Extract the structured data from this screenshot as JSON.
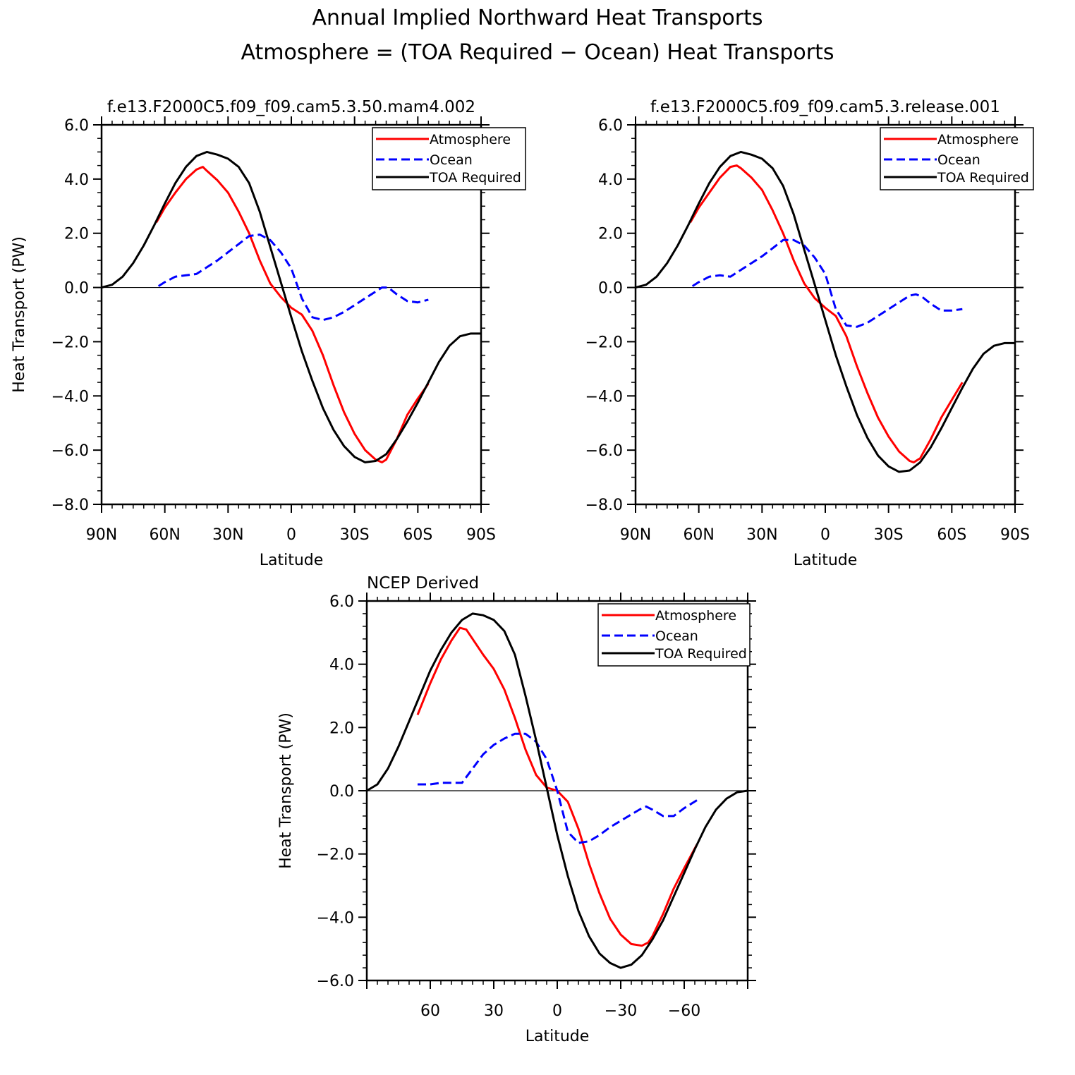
{
  "figure": {
    "title_line1": "Annual Implied Northward Heat Transports",
    "title_line2": "Atmosphere = (TOA Required − Ocean) Heat Transports"
  },
  "colors": {
    "atmosphere": "#ff0000",
    "ocean": "#0000ff",
    "toa": "#000000"
  },
  "chart_data": [
    {
      "type": "line",
      "title": "f.e13.F2000C5.f09_f09.cam5.3.50.mam4.002",
      "xlabel": "Latitude",
      "ylabel": "Heat Transport (PW)",
      "xlim": [
        90,
        -90
      ],
      "ylim": [
        -8,
        6
      ],
      "xticks": [
        90,
        60,
        30,
        0,
        -30,
        -60,
        -90
      ],
      "xtick_labels": [
        "90N",
        "60N",
        "30N",
        "0",
        "30S",
        "60S",
        "90S"
      ],
      "yticks": [
        -8,
        -6,
        -4,
        -2,
        0,
        2,
        4,
        6
      ],
      "ytick_labels": [
        "−8.0",
        "−6.0",
        "−4.0",
        "−2.0",
        "0.0",
        "2.0",
        "4.0",
        "6.0"
      ],
      "legend": [
        "Atmosphere",
        "Ocean",
        "TOA Required"
      ],
      "legend_position": "top-right",
      "series": [
        {
          "name": "Atmosphere",
          "style": "solid",
          "color_key": "atmosphere",
          "x": [
            64,
            60,
            55,
            50,
            45,
            42,
            40,
            35,
            30,
            25,
            20,
            15,
            10,
            5,
            0,
            -5,
            -10,
            -15,
            -20,
            -25,
            -30,
            -35,
            -40,
            -43,
            -45,
            -50,
            -55,
            -60,
            -65
          ],
          "y": [
            2.4,
            2.95,
            3.5,
            4.0,
            4.35,
            4.45,
            4.3,
            3.95,
            3.5,
            2.8,
            2.0,
            1.0,
            0.15,
            -0.35,
            -0.75,
            -1.0,
            -1.6,
            -2.5,
            -3.6,
            -4.6,
            -5.4,
            -6.0,
            -6.35,
            -6.45,
            -6.35,
            -5.6,
            -4.7,
            -4.1,
            -3.55
          ]
        },
        {
          "name": "Ocean",
          "style": "dashed",
          "color_key": "ocean",
          "x": [
            63,
            60,
            55,
            50,
            45,
            40,
            35,
            30,
            25,
            20,
            15,
            10,
            5,
            0,
            -5,
            -10,
            -15,
            -20,
            -25,
            -30,
            -35,
            -40,
            -43,
            -46,
            -50,
            -55,
            -60,
            -65
          ],
          "y": [
            0.05,
            0.2,
            0.4,
            0.45,
            0.5,
            0.75,
            1.0,
            1.3,
            1.6,
            1.9,
            1.95,
            1.75,
            1.3,
            0.7,
            -0.4,
            -1.1,
            -1.2,
            -1.1,
            -0.9,
            -0.65,
            -0.4,
            -0.15,
            0.0,
            0.0,
            -0.25,
            -0.5,
            -0.55,
            -0.45
          ]
        },
        {
          "name": "TOA Required",
          "style": "solid",
          "color_key": "toa",
          "x": [
            90,
            85,
            80,
            75,
            70,
            65,
            60,
            55,
            50,
            45,
            40,
            35,
            30,
            25,
            20,
            15,
            10,
            5,
            0,
            -5,
            -10,
            -15,
            -20,
            -25,
            -30,
            -35,
            -40,
            -45,
            -50,
            -55,
            -60,
            -65,
            -70,
            -75,
            -80,
            -85,
            -90
          ],
          "y": [
            0.0,
            0.1,
            0.4,
            0.9,
            1.55,
            2.3,
            3.1,
            3.85,
            4.45,
            4.85,
            5.0,
            4.9,
            4.75,
            4.45,
            3.85,
            2.8,
            1.5,
            0.2,
            -1.1,
            -2.35,
            -3.45,
            -4.45,
            -5.25,
            -5.85,
            -6.25,
            -6.45,
            -6.4,
            -6.15,
            -5.6,
            -4.95,
            -4.25,
            -3.5,
            -2.75,
            -2.15,
            -1.8,
            -1.7,
            -1.7
          ]
        }
      ]
    },
    {
      "type": "line",
      "title": "f.e13.F2000C5.f09_f09.cam5.3.release.001",
      "xlabel": "Latitude",
      "ylabel": "",
      "xlim": [
        90,
        -90
      ],
      "ylim": [
        -8,
        6
      ],
      "xticks": [
        90,
        60,
        30,
        0,
        -30,
        -60,
        -90
      ],
      "xtick_labels": [
        "90N",
        "60N",
        "30N",
        "0",
        "30S",
        "60S",
        "90S"
      ],
      "yticks": [
        -8,
        -6,
        -4,
        -2,
        0,
        2,
        4,
        6
      ],
      "ytick_labels": [
        "−8.0",
        "−6.0",
        "−4.0",
        "−2.0",
        "0.0",
        "2.0",
        "4.0",
        "6.0"
      ],
      "legend": [
        "Atmosphere",
        "Ocean",
        "TOA Required"
      ],
      "legend_position": "top-right",
      "series": [
        {
          "name": "Atmosphere",
          "style": "solid",
          "color_key": "atmosphere",
          "x": [
            64,
            60,
            55,
            50,
            45,
            42,
            40,
            35,
            30,
            25,
            20,
            15,
            10,
            5,
            0,
            -5,
            -10,
            -15,
            -20,
            -25,
            -30,
            -35,
            -40,
            -42,
            -45,
            -50,
            -55,
            -60,
            -65
          ],
          "y": [
            2.4,
            2.95,
            3.5,
            4.05,
            4.45,
            4.5,
            4.4,
            4.05,
            3.6,
            2.85,
            2.0,
            1.0,
            0.15,
            -0.4,
            -0.75,
            -1.05,
            -1.8,
            -2.9,
            -3.9,
            -4.8,
            -5.5,
            -6.05,
            -6.4,
            -6.45,
            -6.3,
            -5.6,
            -4.8,
            -4.15,
            -3.5
          ]
        },
        {
          "name": "Ocean",
          "style": "dashed",
          "color_key": "ocean",
          "x": [
            63,
            60,
            55,
            50,
            45,
            40,
            35,
            30,
            25,
            20,
            15,
            10,
            5,
            0,
            -5,
            -10,
            -15,
            -20,
            -25,
            -30,
            -35,
            -40,
            -43,
            -46,
            -50,
            -55,
            -60,
            -65
          ],
          "y": [
            0.05,
            0.2,
            0.4,
            0.45,
            0.4,
            0.65,
            0.9,
            1.15,
            1.45,
            1.75,
            1.75,
            1.55,
            1.1,
            0.5,
            -0.8,
            -1.4,
            -1.45,
            -1.3,
            -1.05,
            -0.8,
            -0.55,
            -0.3,
            -0.25,
            -0.35,
            -0.6,
            -0.85,
            -0.85,
            -0.8
          ]
        },
        {
          "name": "TOA Required",
          "style": "solid",
          "color_key": "toa",
          "x": [
            90,
            85,
            80,
            75,
            70,
            65,
            60,
            55,
            50,
            45,
            40,
            35,
            30,
            25,
            20,
            15,
            10,
            5,
            0,
            -5,
            -10,
            -15,
            -20,
            -25,
            -30,
            -35,
            -40,
            -45,
            -50,
            -55,
            -60,
            -65,
            -70,
            -75,
            -80,
            -85,
            -90
          ],
          "y": [
            0.0,
            0.1,
            0.4,
            0.9,
            1.55,
            2.3,
            3.1,
            3.85,
            4.45,
            4.85,
            5.0,
            4.9,
            4.75,
            4.4,
            3.75,
            2.7,
            1.4,
            0.1,
            -1.2,
            -2.5,
            -3.65,
            -4.7,
            -5.55,
            -6.2,
            -6.6,
            -6.8,
            -6.75,
            -6.45,
            -5.9,
            -5.2,
            -4.45,
            -3.7,
            -3.0,
            -2.45,
            -2.15,
            -2.05,
            -2.05
          ]
        }
      ]
    },
    {
      "type": "line",
      "title": "NCEP Derived",
      "xlabel": "Latitude",
      "ylabel": "Heat Transport (PW)",
      "xlim": [
        90,
        -90
      ],
      "ylim": [
        -6,
        6
      ],
      "xticks": [
        60,
        30,
        0,
        -30,
        -60
      ],
      "xtick_labels": [
        "60",
        "30",
        "0",
        "−30",
        "−60"
      ],
      "yticks": [
        -6,
        -4,
        -2,
        0,
        2,
        4,
        6
      ],
      "ytick_labels": [
        "−6.0",
        "−4.0",
        "−2.0",
        "0.0",
        "2.0",
        "4.0",
        "6.0"
      ],
      "legend": [
        "Atmosphere",
        "Ocean",
        "TOA Required"
      ],
      "legend_position": "top-right",
      "series": [
        {
          "name": "Atmosphere",
          "style": "solid",
          "color_key": "atmosphere",
          "x": [
            66,
            60,
            55,
            50,
            46,
            43,
            40,
            35,
            30,
            25,
            20,
            15,
            10,
            5,
            0,
            -5,
            -10,
            -15,
            -20,
            -25,
            -30,
            -35,
            -40,
            -43,
            -45,
            -50,
            -55,
            -60,
            -66
          ],
          "y": [
            2.4,
            3.4,
            4.15,
            4.75,
            5.15,
            5.1,
            4.8,
            4.3,
            3.85,
            3.2,
            2.3,
            1.3,
            0.5,
            0.1,
            0.0,
            -0.35,
            -1.2,
            -2.3,
            -3.25,
            -4.05,
            -4.55,
            -4.85,
            -4.9,
            -4.8,
            -4.6,
            -3.9,
            -3.1,
            -2.45,
            -1.7
          ]
        },
        {
          "name": "Ocean",
          "style": "dashed",
          "color_key": "ocean",
          "x": [
            66,
            60,
            55,
            50,
            45,
            40,
            35,
            30,
            25,
            20,
            15,
            10,
            5,
            0,
            -5,
            -10,
            -15,
            -20,
            -25,
            -30,
            -35,
            -40,
            -42,
            -45,
            -50,
            -55,
            -60,
            -66
          ],
          "y": [
            0.2,
            0.2,
            0.25,
            0.25,
            0.25,
            0.7,
            1.15,
            1.45,
            1.65,
            1.8,
            1.8,
            1.55,
            1.0,
            0.0,
            -1.3,
            -1.65,
            -1.6,
            -1.4,
            -1.15,
            -0.95,
            -0.75,
            -0.55,
            -0.5,
            -0.6,
            -0.8,
            -0.8,
            -0.55,
            -0.3
          ]
        },
        {
          "name": "TOA Required",
          "style": "solid",
          "color_key": "toa",
          "x": [
            90,
            85,
            80,
            75,
            70,
            65,
            60,
            55,
            50,
            45,
            40,
            35,
            30,
            25,
            20,
            15,
            10,
            5,
            0,
            -5,
            -10,
            -15,
            -20,
            -25,
            -30,
            -35,
            -40,
            -45,
            -50,
            -55,
            -60,
            -65,
            -70,
            -75,
            -80,
            -85,
            -90
          ],
          "y": [
            0.0,
            0.2,
            0.7,
            1.4,
            2.2,
            3.0,
            3.8,
            4.45,
            5.0,
            5.4,
            5.6,
            5.55,
            5.4,
            5.05,
            4.3,
            3.0,
            1.6,
            0.1,
            -1.4,
            -2.7,
            -3.8,
            -4.6,
            -5.15,
            -5.45,
            -5.6,
            -5.5,
            -5.2,
            -4.7,
            -4.1,
            -3.35,
            -2.6,
            -1.85,
            -1.15,
            -0.6,
            -0.25,
            -0.05,
            0.0
          ]
        }
      ]
    }
  ]
}
